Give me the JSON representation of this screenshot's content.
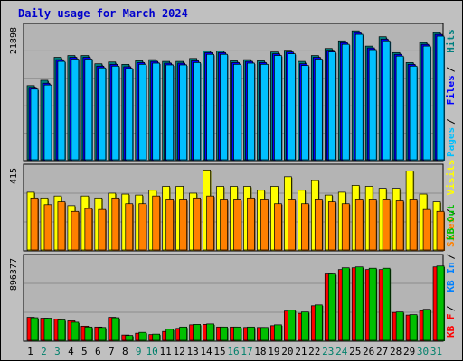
{
  "title": "Daily usage for March 2024",
  "colors": {
    "background": "#c0c0c0",
    "panel": "#b4b4b4",
    "grid": "#8c8c8c",
    "title": "#0000cc",
    "hits": "#008080",
    "files": "#0000ff",
    "pages": "#00c0ff",
    "visits": "#ffff00",
    "sites": "#ff8000",
    "kb_in": "#0080ff",
    "kb_out": "#00c000",
    "kb_f": "#ff0000",
    "weekend": "#00806b",
    "weekday": "#000000"
  },
  "chart_data": [
    {
      "type": "bar",
      "panel": "hits-files-pages",
      "scale_label": "21898",
      "ylim": [
        0,
        23000
      ],
      "legend": [
        "Pages",
        "Files",
        "Hits"
      ],
      "x": [
        1,
        2,
        3,
        4,
        5,
        6,
        7,
        8,
        9,
        10,
        11,
        12,
        13,
        14,
        15,
        16,
        17,
        18,
        19,
        20,
        21,
        22,
        23,
        24,
        25,
        26,
        27,
        28,
        29,
        30,
        31
      ],
      "series": [
        {
          "name": "Hits",
          "values": [
            12600,
            13500,
            17400,
            17700,
            17700,
            16300,
            16600,
            16200,
            16800,
            17000,
            16700,
            16700,
            17200,
            18500,
            18500,
            16800,
            17000,
            16800,
            18300,
            18600,
            16700,
            17700,
            18900,
            20200,
            21900,
            19300,
            20900,
            18200,
            16500,
            19900,
            21600
          ]
        },
        {
          "name": "Files",
          "values": [
            12300,
            13000,
            17000,
            17400,
            17400,
            15900,
            16200,
            15800,
            16500,
            16700,
            16400,
            16400,
            16800,
            18200,
            18200,
            16500,
            16700,
            16500,
            18000,
            18300,
            16300,
            17400,
            18600,
            19900,
            21600,
            19000,
            20500,
            17900,
            16200,
            19600,
            21300
          ]
        },
        {
          "name": "Pages",
          "values": [
            12000,
            12700,
            16700,
            17100,
            17100,
            15600,
            15900,
            15500,
            16200,
            16400,
            16100,
            16100,
            16500,
            17900,
            17900,
            16200,
            16400,
            16200,
            17700,
            18000,
            16000,
            17100,
            18300,
            19600,
            21300,
            18700,
            20200,
            17600,
            15900,
            19300,
            21000
          ]
        }
      ]
    },
    {
      "type": "bar",
      "panel": "visits-sites",
      "scale_label": "415",
      "ylim": [
        0,
        440
      ],
      "legend": [
        "Sites",
        "Visits"
      ],
      "x": [
        1,
        2,
        3,
        4,
        5,
        6,
        7,
        8,
        9,
        10,
        11,
        12,
        13,
        14,
        15,
        16,
        17,
        18,
        19,
        20,
        21,
        22,
        23,
        24,
        25,
        26,
        27,
        28,
        29,
        30,
        31
      ],
      "series": [
        {
          "name": "Visits",
          "values": [
            300,
            270,
            280,
            230,
            280,
            270,
            295,
            290,
            285,
            310,
            330,
            330,
            295,
            415,
            330,
            330,
            330,
            310,
            330,
            380,
            310,
            360,
            285,
            300,
            335,
            330,
            320,
            320,
            410,
            290,
            250
          ]
        },
        {
          "name": "Sites",
          "values": [
            270,
            235,
            250,
            200,
            215,
            210,
            270,
            240,
            240,
            280,
            260,
            260,
            270,
            280,
            260,
            260,
            270,
            260,
            240,
            260,
            240,
            260,
            250,
            240,
            260,
            260,
            260,
            255,
            260,
            210,
            200
          ]
        }
      ]
    },
    {
      "type": "bar",
      "panel": "kbytes",
      "scale_label": "896377",
      "ylim": [
        0,
        960000
      ],
      "legend": [
        "KB F",
        "KB In",
        "KB Out"
      ],
      "x": [
        1,
        2,
        3,
        4,
        5,
        6,
        7,
        8,
        9,
        10,
        11,
        12,
        13,
        14,
        15,
        16,
        17,
        18,
        19,
        20,
        21,
        22,
        23,
        24,
        25,
        26,
        27,
        28,
        29,
        30,
        31
      ],
      "series": [
        {
          "name": "KB F",
          "values": [
            260000,
            250000,
            240000,
            220000,
            160000,
            150000,
            260000,
            60000,
            80000,
            65000,
            100000,
            135000,
            175000,
            180000,
            150000,
            150000,
            145000,
            145000,
            165000,
            330000,
            305000,
            390000,
            750000,
            800000,
            820000,
            800000,
            800000,
            315000,
            285000,
            335000,
            830000
          ]
        },
        {
          "name": "KB Out",
          "values": [
            255000,
            250000,
            230000,
            205000,
            150000,
            145000,
            255000,
            55000,
            90000,
            70000,
            125000,
            150000,
            180000,
            185000,
            150000,
            150000,
            150000,
            145000,
            175000,
            340000,
            320000,
            400000,
            750000,
            820000,
            830000,
            815000,
            815000,
            320000,
            290000,
            350000,
            840000
          ]
        }
      ]
    }
  ],
  "x_axis": {
    "labels": [
      "1",
      "2",
      "3",
      "4",
      "5",
      "6",
      "7",
      "8",
      "9",
      "10",
      "11",
      "12",
      "13",
      "14",
      "15",
      "16",
      "17",
      "18",
      "19",
      "20",
      "21",
      "22",
      "23",
      "24",
      "25",
      "26",
      "27",
      "28",
      "29",
      "30",
      "31"
    ],
    "weekend_days": [
      2,
      3,
      9,
      10,
      16,
      17,
      23,
      24,
      30,
      31
    ]
  }
}
